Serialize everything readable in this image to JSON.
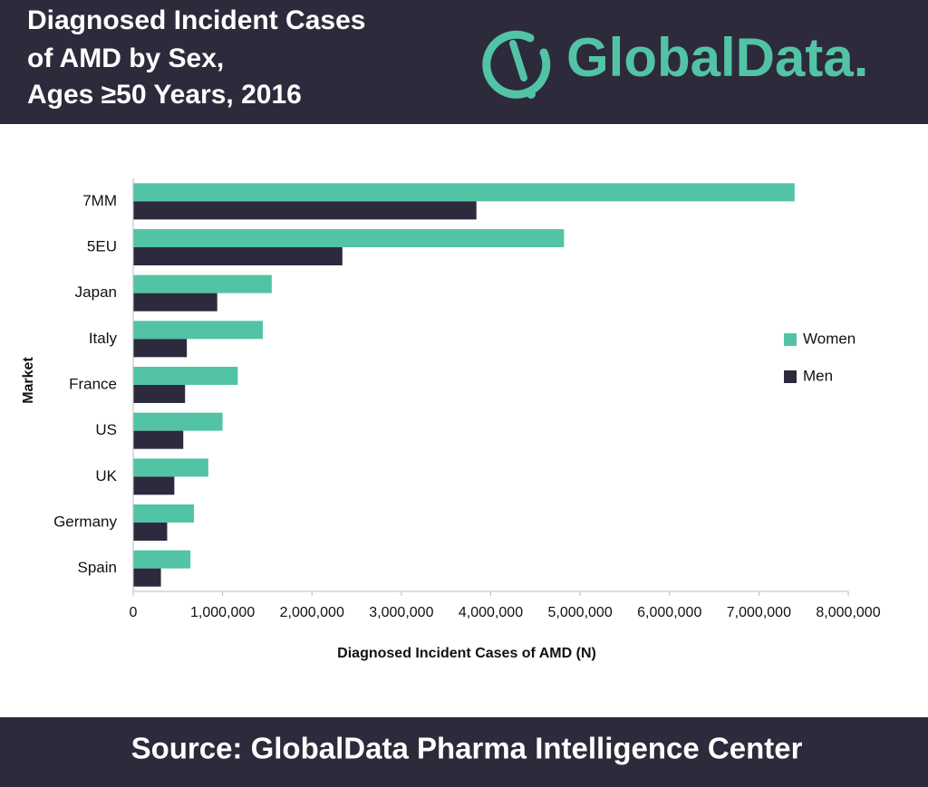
{
  "chart_data": {
    "type": "hbar",
    "title": [
      "Diagnosed Incident Cases",
      "of AMD by Sex,",
      "Ages ≥50 Years, 2016"
    ],
    "logo": "GlobalData.",
    "source": "Source: GlobalData Pharma Intelligence Center",
    "xlabel": "Diagnosed Incident Cases of AMD (N)",
    "ylabel": "Market",
    "categories": [
      "7MM",
      "5EU",
      "Japan",
      "Italy",
      "France",
      "US",
      "UK",
      "Germany",
      "Spain"
    ],
    "series": [
      {
        "name": "Women",
        "color": "#52c4a5",
        "values": [
          7400000,
          4820000,
          1550000,
          1450000,
          1170000,
          1000000,
          840000,
          680000,
          640000
        ]
      },
      {
        "name": "Men",
        "color": "#2d2a3e",
        "values": [
          3840000,
          2340000,
          940000,
          600000,
          580000,
          560000,
          460000,
          380000,
          310000
        ]
      }
    ],
    "xlim": [
      0,
      8000000
    ],
    "xticks": [
      0,
      {
        "value": 1000000,
        "label": "1,000,000"
      },
      {
        "value": 2000000,
        "label": "2,000,000"
      },
      {
        "value": 3000000,
        "label": "3,000,000"
      },
      {
        "value": 4000000,
        "label": "4,000,000"
      },
      {
        "value": 5000000,
        "label": "5,000,000"
      },
      {
        "value": 6000000,
        "label": "6,000,000"
      },
      {
        "value": 7000000,
        "label": "7,000,000"
      },
      {
        "value": 8000000,
        "label": "8,000,000"
      }
    ],
    "legend": "right"
  }
}
